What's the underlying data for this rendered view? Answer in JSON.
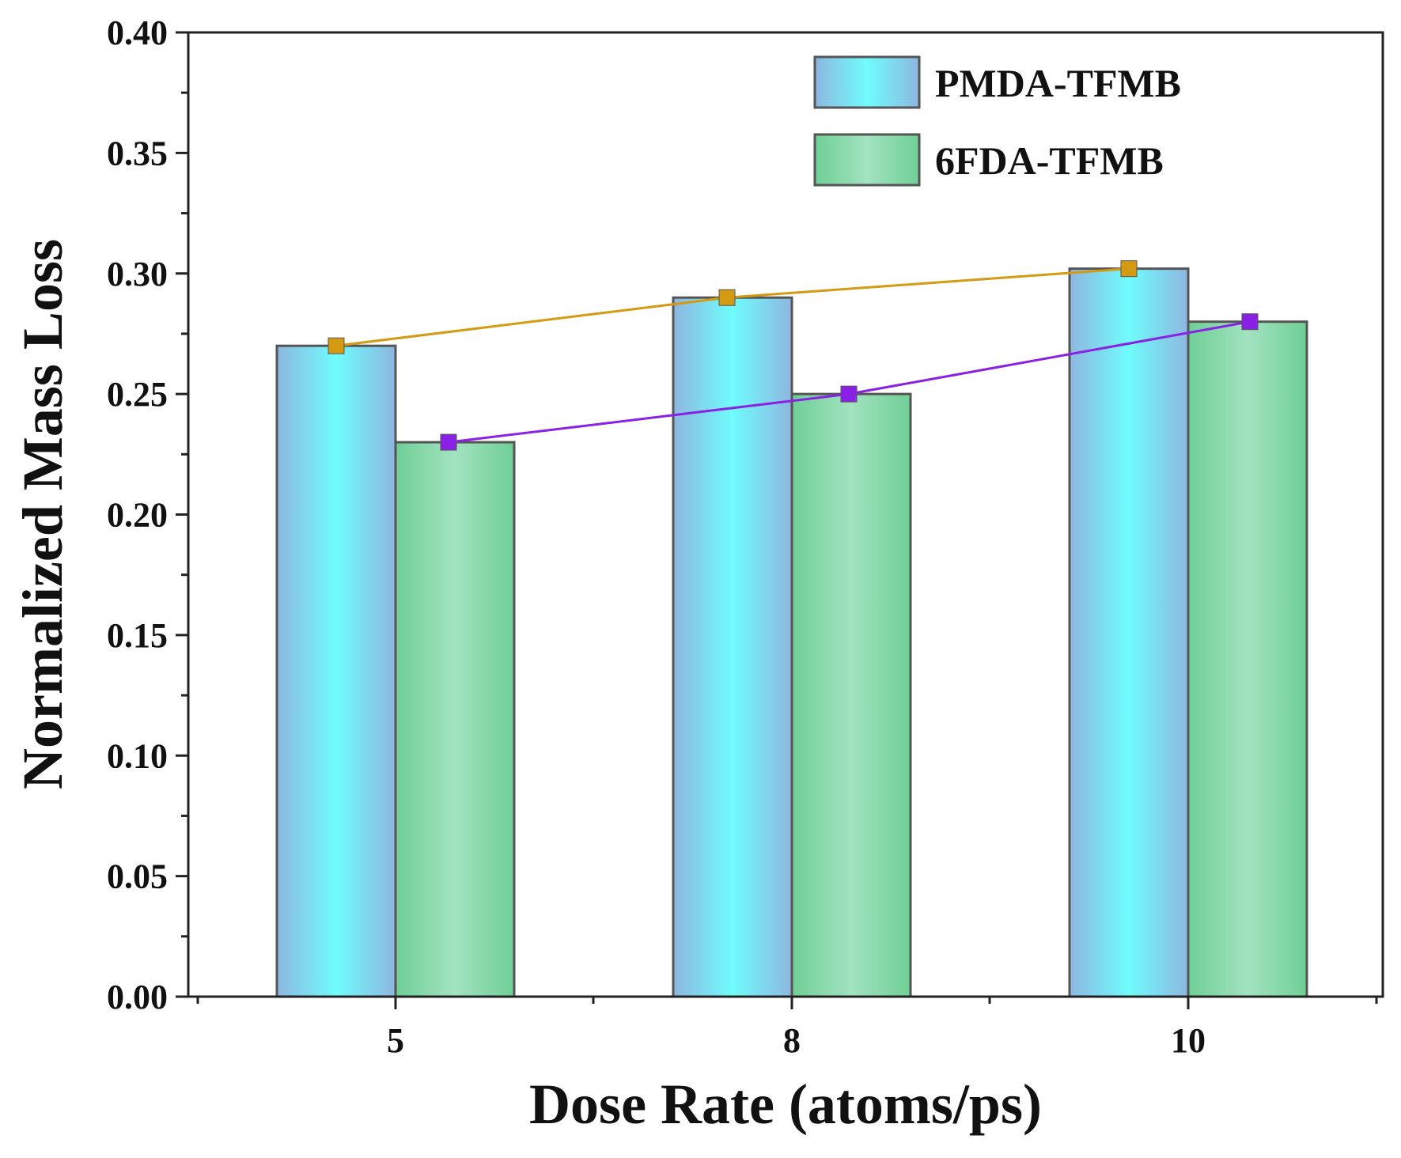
{
  "chart_data": {
    "type": "bar",
    "xlabel": "Dose Rate (atoms/ps)",
    "ylabel": "Normalized Mass Loss",
    "categories": [
      "5",
      "8",
      "10"
    ],
    "ylim": [
      0,
      0.4
    ],
    "yticks": [
      "0.00",
      "0.05",
      "0.10",
      "0.15",
      "0.20",
      "0.25",
      "0.30",
      "0.35",
      "0.40"
    ],
    "series": [
      {
        "name": "PMDA-TFMB",
        "values": [
          0.27,
          0.29,
          0.302
        ],
        "line_color": "#d49a12"
      },
      {
        "name": "6FDA-TFMB",
        "values": [
          0.23,
          0.25,
          0.28
        ],
        "line_color": "#8a1fe6"
      }
    ],
    "legend_position": "top-right",
    "grid": false
  }
}
